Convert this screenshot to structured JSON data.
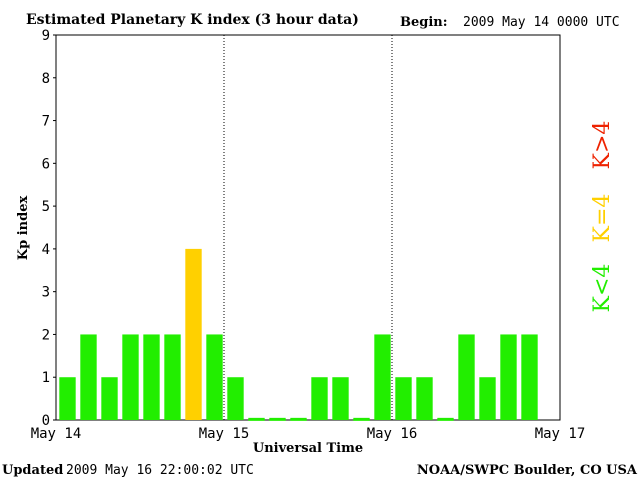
{
  "chart_data": {
    "type": "bar",
    "title": "Estimated Planetary K index (3 hour data)",
    "begin_label": "Begin:",
    "begin_value": "2009 May 14 0000 UTC",
    "ylabel": "Kp index",
    "xlabel": "Universal Time",
    "ylim": [
      0,
      9
    ],
    "yticks": [
      "0",
      "1",
      "2",
      "3",
      "4",
      "5",
      "6",
      "7",
      "8",
      "9"
    ],
    "xticks": [
      "May 14",
      "May 15",
      "May 16",
      "May 17"
    ],
    "grid": false,
    "values": [
      1,
      2,
      1,
      2,
      2,
      2,
      4,
      2,
      1,
      0.05,
      0.05,
      0.05,
      1,
      1,
      0.05,
      2,
      1,
      1,
      0.05,
      2,
      1,
      2,
      2
    ],
    "colors": {
      "below4": "#22ee00",
      "equal4": "#ffd000",
      "above4": "#ee2200"
    },
    "legend": [
      {
        "text": "K<4",
        "color": "#22ee00"
      },
      {
        "text": "K=4",
        "color": "#ffd000"
      },
      {
        "text": "K>4",
        "color": "#ee2200"
      }
    ]
  },
  "footer": {
    "updated_label": "Updated",
    "updated_value": "2009 May 16 22:00:02 UTC",
    "source": "NOAA/SWPC Boulder, CO USA"
  }
}
